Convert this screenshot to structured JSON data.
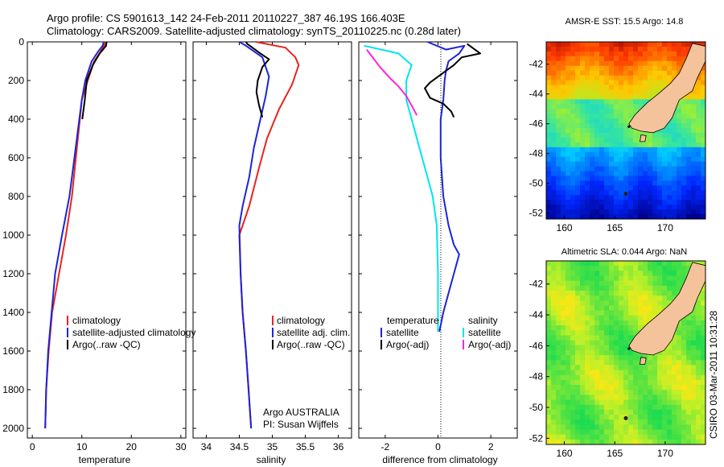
{
  "header": {
    "line1": "Argo profile: CS 5901613_142 24-Feb-2011 20110227_387 46.19S 166.403E",
    "line2": "Climatology: CARS2009. Satellite-adjusted climatology: synTS_20110225.nc (0.28d later)"
  },
  "footer": {
    "credit_vertical": "CSIRO 03-Mar-2011 10:31:28"
  },
  "colors": {
    "climatology": "#e8231b",
    "satellite": "#1c24d6",
    "argo": "#000000",
    "satellite_diff_salinity": "#00e5ee",
    "argo_diff_salinity": "#ff22dd",
    "land": "#f4c39b"
  },
  "chart_data": [
    {
      "type": "line",
      "xlabel": "temperature",
      "ylim": [
        2050,
        0
      ],
      "xlim": [
        -1,
        31
      ],
      "xticks": [
        0,
        10,
        20,
        30
      ],
      "yticks": [
        0,
        200,
        400,
        600,
        800,
        1000,
        1200,
        1400,
        1600,
        1800,
        2000
      ],
      "legend": [
        "climatology",
        "satellite-adjusted climatology",
        "Argo(..raw -QC)"
      ],
      "series": [
        {
          "name": "climatology",
          "color": "#e8231b",
          "points": [
            [
              14.8,
              0
            ],
            [
              14.5,
              20
            ],
            [
              13.8,
              50
            ],
            [
              12.5,
              100
            ],
            [
              11.2,
              200
            ],
            [
              10.0,
              300
            ],
            [
              9.6,
              400
            ],
            [
              8.8,
              600
            ],
            [
              8.0,
              800
            ],
            [
              6.8,
              1000
            ],
            [
              5.4,
              1200
            ],
            [
              4.0,
              1400
            ],
            [
              3.3,
              1600
            ],
            [
              2.8,
              1800
            ],
            [
              2.6,
              2000
            ]
          ]
        },
        {
          "name": "satellite-adjusted climatology",
          "color": "#1c24d6",
          "points": [
            [
              14.4,
              0
            ],
            [
              14.2,
              20
            ],
            [
              13.3,
              50
            ],
            [
              12.0,
              100
            ],
            [
              10.7,
              200
            ],
            [
              10.0,
              300
            ],
            [
              9.5,
              400
            ],
            [
              8.5,
              600
            ],
            [
              7.5,
              800
            ],
            [
              6.0,
              1000
            ],
            [
              4.6,
              1200
            ],
            [
              3.9,
              1400
            ],
            [
              3.2,
              1600
            ],
            [
              2.8,
              1800
            ],
            [
              2.6,
              2000
            ]
          ]
        },
        {
          "name": "Argo(..raw -QC)",
          "color": "#000000",
          "points": [
            [
              15.0,
              0
            ],
            [
              14.9,
              20
            ],
            [
              13.6,
              60
            ],
            [
              12.2,
              120
            ],
            [
              11.0,
              200
            ],
            [
              10.6,
              300
            ],
            [
              10.1,
              400
            ]
          ]
        }
      ]
    },
    {
      "type": "line",
      "xlabel": "salinity",
      "ylim": [
        2050,
        0
      ],
      "xlim": [
        33.8,
        36.2
      ],
      "xticks": [
        34,
        34.5,
        35,
        35.5,
        36
      ],
      "yticks": [
        0,
        200,
        400,
        600,
        800,
        1000,
        1200,
        1400,
        1600,
        1800,
        2000
      ],
      "legend": [
        "climatology",
        "satellite adj. clim.",
        "Argo(..raw -QC)"
      ],
      "annotations": [
        "Argo AUSTRALIA",
        "PI: Susan Wijffels"
      ],
      "series": [
        {
          "name": "climatology",
          "color": "#e8231b",
          "points": [
            [
              34.75,
              0
            ],
            [
              35.2,
              30
            ],
            [
              35.35,
              80
            ],
            [
              35.4,
              120
            ],
            [
              35.3,
              220
            ],
            [
              35.1,
              350
            ],
            [
              34.92,
              500
            ],
            [
              34.8,
              650
            ],
            [
              34.65,
              850
            ],
            [
              34.5,
              1000
            ],
            [
              34.52,
              1200
            ],
            [
              34.55,
              1400
            ],
            [
              34.6,
              1600
            ],
            [
              34.64,
              1800
            ],
            [
              34.68,
              2000
            ]
          ]
        },
        {
          "name": "satellite adj. clim.",
          "color": "#1c24d6",
          "points": [
            [
              34.5,
              0
            ],
            [
              34.6,
              20
            ],
            [
              34.85,
              80
            ],
            [
              34.95,
              180
            ],
            [
              34.9,
              280
            ],
            [
              34.82,
              400
            ],
            [
              34.72,
              550
            ],
            [
              34.65,
              700
            ],
            [
              34.55,
              850
            ],
            [
              34.5,
              950
            ],
            [
              34.52,
              1200
            ],
            [
              34.55,
              1400
            ],
            [
              34.6,
              1600
            ],
            [
              34.64,
              1800
            ],
            [
              34.68,
              2000
            ]
          ]
        },
        {
          "name": "Argo(..raw -QC)",
          "color": "#000000",
          "points": [
            [
              34.6,
              0
            ],
            [
              34.62,
              10
            ],
            [
              34.82,
              60
            ],
            [
              34.95,
              90
            ],
            [
              34.85,
              130
            ],
            [
              34.78,
              200
            ],
            [
              34.76,
              260
            ],
            [
              34.8,
              330
            ],
            [
              34.85,
              390
            ]
          ]
        }
      ]
    },
    {
      "type": "line",
      "xlabel": "difference from climatology",
      "ylim": [
        2050,
        0
      ],
      "xlim": [
        -3,
        3
      ],
      "xticks": [
        -2,
        0,
        2
      ],
      "yticks": [
        0,
        200,
        400,
        600,
        800,
        1000,
        1200,
        1400,
        1600,
        1800,
        2000
      ],
      "legend_left_title": "temperature",
      "legend_right_title": "salinity",
      "legend_left": [
        "satellite",
        "Argo(-adj)"
      ],
      "legend_right": [
        "satellite",
        "Argo(-adj)"
      ],
      "series": [
        {
          "name": "temperature satellite",
          "color": "#1c24d6",
          "points": [
            [
              -0.4,
              0
            ],
            [
              0.3,
              40
            ],
            [
              1.0,
              20
            ],
            [
              0.8,
              60
            ],
            [
              0.4,
              100
            ],
            [
              0.3,
              150
            ],
            [
              0.25,
              200
            ],
            [
              0.2,
              300
            ],
            [
              0.1,
              400
            ],
            [
              0.1,
              600
            ],
            [
              0.2,
              800
            ],
            [
              0.4,
              950
            ],
            [
              0.6,
              1050
            ],
            [
              0.8,
              1100
            ],
            [
              0.6,
              1200
            ],
            [
              0.4,
              1300
            ],
            [
              0.2,
              1400
            ],
            [
              0.05,
              1500
            ]
          ]
        },
        {
          "name": "temperature Argo(-adj)",
          "color": "#000000",
          "points": [
            [
              1.1,
              10
            ],
            [
              1.6,
              60
            ],
            [
              0.9,
              80
            ],
            [
              0.6,
              120
            ],
            [
              0.0,
              180
            ],
            [
              -0.3,
              210
            ],
            [
              -0.5,
              240
            ],
            [
              -0.3,
              290
            ],
            [
              0.2,
              320
            ],
            [
              0.5,
              360
            ],
            [
              0.6,
              390
            ]
          ]
        },
        {
          "name": "salinity satellite",
          "color": "#00e5ee",
          "points": [
            [
              -2.8,
              20
            ],
            [
              -1.5,
              60
            ],
            [
              -1.0,
              120
            ],
            [
              -1.2,
              200
            ],
            [
              -1.2,
              300
            ],
            [
              -1.0,
              400
            ],
            [
              -0.8,
              500
            ],
            [
              -0.6,
              600
            ],
            [
              -0.4,
              700
            ],
            [
              -0.2,
              800
            ],
            [
              -0.05,
              950
            ],
            [
              0.0,
              1200
            ],
            [
              0.0,
              1400
            ],
            [
              0.0,
              1500
            ]
          ]
        },
        {
          "name": "salinity Argo(-adj)",
          "color": "#ff22dd",
          "points": [
            [
              -2.7,
              40
            ],
            [
              -2.2,
              130
            ],
            [
              -1.8,
              190
            ],
            [
              -1.5,
              230
            ],
            [
              -1.2,
              280
            ],
            [
              -1.0,
              330
            ],
            [
              -0.8,
              380
            ]
          ]
        }
      ]
    }
  ],
  "maps": [
    {
      "title": "AMSR-E SST: 15.5 Argo: 14.8",
      "xticks": [
        "160",
        "165",
        "170"
      ],
      "yticks": [
        "-42",
        "-44",
        "-46",
        "-48",
        "-50",
        "-52"
      ],
      "field": "sst"
    },
    {
      "title": "Altimetric SLA: 0.044 Argo: NaN",
      "xticks": [
        "160",
        "165",
        "170"
      ],
      "yticks": [
        "-42",
        "-44",
        "-46",
        "-48",
        "-50",
        "-52"
      ],
      "field": "sla"
    }
  ]
}
